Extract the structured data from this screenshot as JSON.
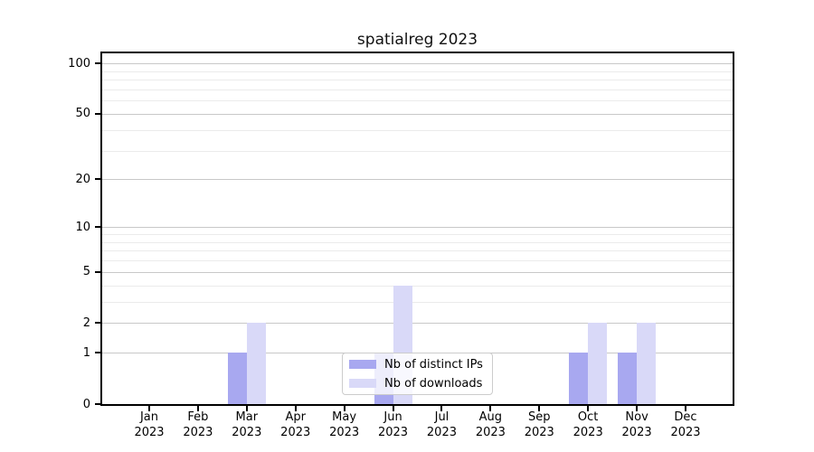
{
  "chart_data": {
    "type": "bar",
    "title": "spatialreg 2023",
    "categories": [
      "Jan",
      "Feb",
      "Mar",
      "Apr",
      "May",
      "Jun",
      "Jul",
      "Aug",
      "Sep",
      "Oct",
      "Nov",
      "Dec"
    ],
    "year_label": "2023",
    "series": [
      {
        "name": "Nb of distinct IPs",
        "color": "#a8a8f0",
        "values": [
          0,
          0,
          1,
          0,
          0,
          1,
          0,
          0,
          0,
          1,
          1,
          0
        ]
      },
      {
        "name": "Nb of downloads",
        "color": "#d9d9f8",
        "values": [
          0,
          0,
          2,
          0,
          0,
          4,
          0,
          0,
          0,
          2,
          2,
          0
        ]
      }
    ],
    "y_axis": {
      "scale": "log10(1+x)",
      "tick_values": [
        0,
        1,
        2,
        5,
        10,
        20,
        50,
        100
      ],
      "minor_gridline_values": [
        3,
        4,
        6,
        7,
        8,
        9,
        30,
        40,
        60,
        70,
        80,
        90
      ],
      "ylim": [
        0,
        115
      ]
    },
    "x_axis": {
      "label_line2": "2023"
    },
    "legend": {
      "position": "lower center",
      "entries": [
        "Nb of distinct IPs",
        "Nb of downloads"
      ]
    },
    "grid": "horizontal"
  },
  "colors": {
    "background": "#ffffff",
    "spine": "#000000",
    "grid_major": "#c8c8c8",
    "grid_minor": "#ebebeb",
    "distinct_ips": "#a8a8f0",
    "downloads": "#d9d9f8",
    "legend_border": "#cccccc",
    "text": "#000000"
  }
}
